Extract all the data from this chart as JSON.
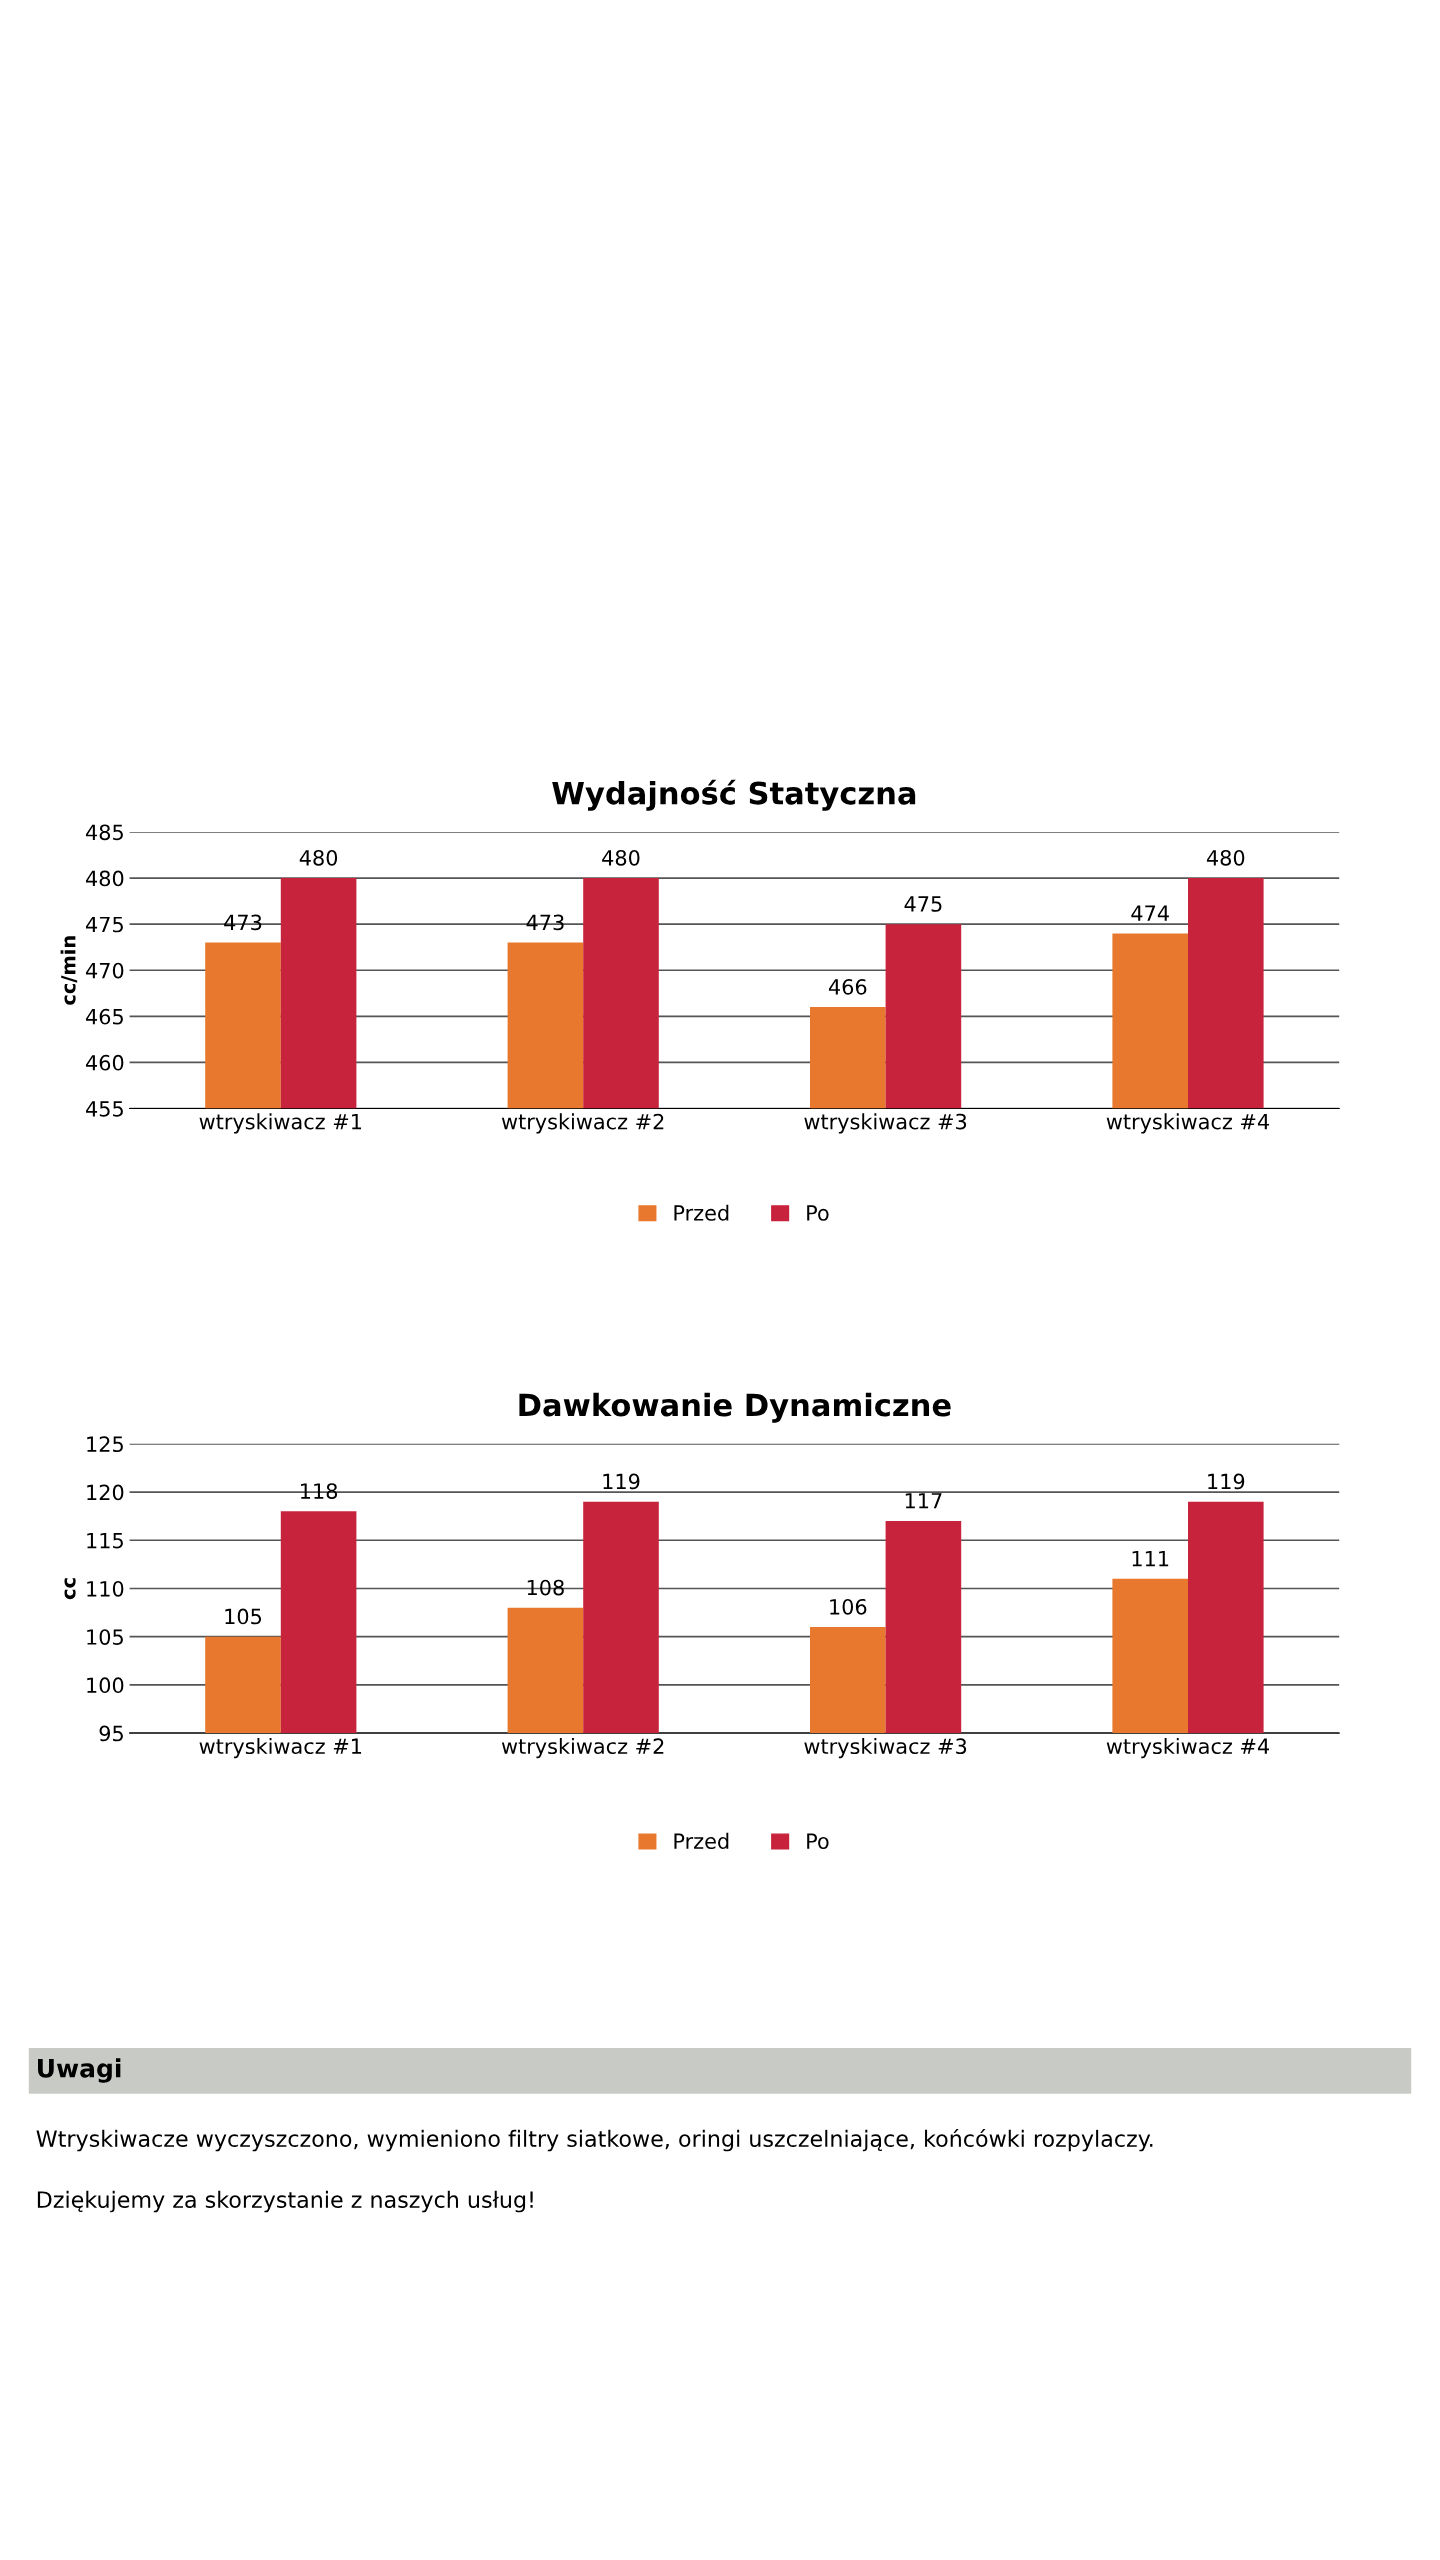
{
  "chart_data": [
    {
      "type": "bar",
      "title": "Wydajność Statyczna",
      "ylabel": "cc/min",
      "categories": [
        "wtryskiwacz #1",
        "wtryskiwacz #2",
        "wtryskiwacz #3",
        "wtryskiwacz #4"
      ],
      "series": [
        {
          "name": "Przed",
          "color": "#e8782e",
          "values": [
            473,
            473,
            466,
            474
          ]
        },
        {
          "name": "Po",
          "color": "#c8233c",
          "values": [
            480,
            480,
            475,
            480
          ]
        }
      ],
      "ylim": [
        455,
        485
      ],
      "yticks": [
        455,
        460,
        465,
        470,
        475,
        480,
        485
      ],
      "grid": "y",
      "legend": "bottom",
      "data_labels": true
    },
    {
      "type": "bar",
      "title": "Dawkowanie Dynamiczne",
      "ylabel": "cc",
      "categories": [
        "wtryskiwacz #1",
        "wtryskiwacz #2",
        "wtryskiwacz #3",
        "wtryskiwacz #4"
      ],
      "series": [
        {
          "name": "Przed",
          "color": "#e8782e",
          "values": [
            105,
            108,
            106,
            111
          ]
        },
        {
          "name": "Po",
          "color": "#c8233c",
          "values": [
            118,
            119,
            117,
            119
          ]
        }
      ],
      "ylim": [
        95,
        125
      ],
      "yticks": [
        95,
        100,
        105,
        110,
        115,
        120,
        125
      ],
      "grid": "y",
      "legend": "bottom",
      "data_labels": true
    },
    {
      "type": "other",
      "title": "Uwagi",
      "annotations": [
        "Wtryskiwacze wyczyszczono, wymieniono filtry siatkowe, oringi uszczelniające, końcówki rozpylaczy.",
        "Dziękujemy za skorzystanie z naszych usług!"
      ]
    }
  ]
}
